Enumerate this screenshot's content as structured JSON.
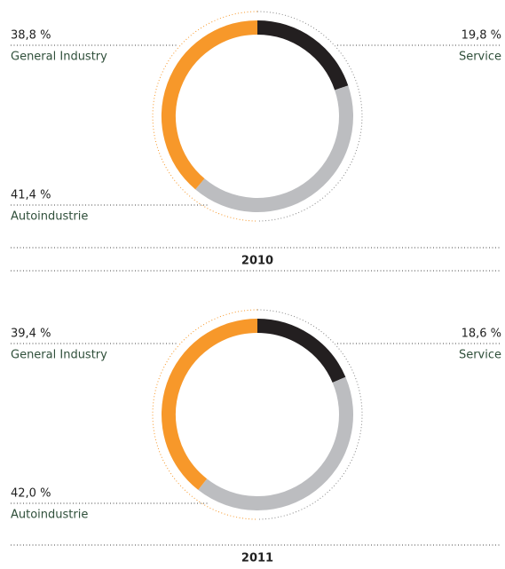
{
  "chart_data": [
    {
      "type": "donut",
      "title": "2010",
      "categories": [
        "Service",
        "Autoindustrie",
        "General Industry"
      ],
      "values": [
        19.8,
        41.4,
        38.8
      ],
      "value_labels": [
        "19,8 %",
        "41,4 %",
        "38,8 %"
      ],
      "colors": [
        "#231f20",
        "#bcbdc0",
        "#f7982a"
      ]
    },
    {
      "type": "donut",
      "title": "2011",
      "categories": [
        "Service",
        "Autoindustrie",
        "General Industry"
      ],
      "values": [
        18.6,
        42.0,
        39.4
      ],
      "value_labels": [
        "18,6 %",
        "42,0 %",
        "39,4 %"
      ],
      "colors": [
        "#231f20",
        "#bcbdc0",
        "#f7982a"
      ]
    }
  ]
}
